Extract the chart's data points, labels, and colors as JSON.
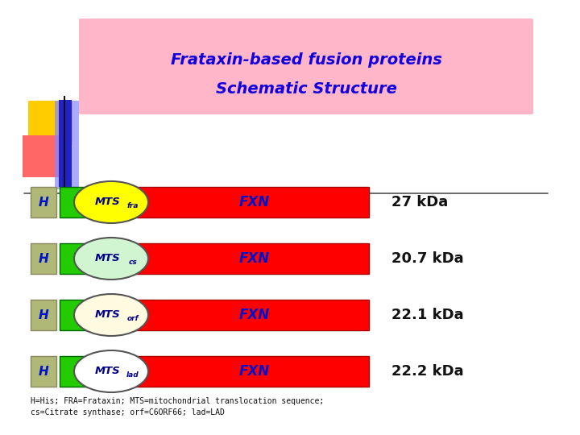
{
  "title_line1": "Frataxin-based fusion proteins",
  "title_line2": "Schematic Structure",
  "title_color": "#1100dd",
  "title_bg": "#ffb6c8",
  "bg_color": "#ffffff",
  "rows": [
    {
      "mts_label": "MTS",
      "mts_sub": "fra",
      "mts_color": "#ffff00",
      "weight": "27 kDa"
    },
    {
      "mts_label": "MTS",
      "mts_sub": "cs",
      "mts_color": "#d0f5d0",
      "weight": "20.7 kDa"
    },
    {
      "mts_label": "MTS",
      "mts_sub": "orf",
      "mts_color": "#fffae0",
      "weight": "22.1 kDa"
    },
    {
      "mts_label": "MTS",
      "mts_sub": "lad",
      "mts_color": "#ffffff",
      "weight": "22.2 kDa"
    }
  ],
  "H_color": "#b0b878",
  "TAT_color": "#22cc00",
  "FXN_color": "#ff0000",
  "H_text_color": "#0011cc",
  "TAT_text_color": "#0011cc",
  "FXN_text_color": "#0011cc",
  "MTS_text_color": "#000088",
  "footnote": "H=His; FRA=Frataxin; MTS=mitochondrial translocation sequence;\ncs=Citrate synthase; orf=C6ORF66; lad=LAD",
  "deco_yellow": "#ffcc00",
  "deco_pink": "#ff6666",
  "deco_blue": "#2222cc",
  "deco_blue_blur": "#8888ff"
}
